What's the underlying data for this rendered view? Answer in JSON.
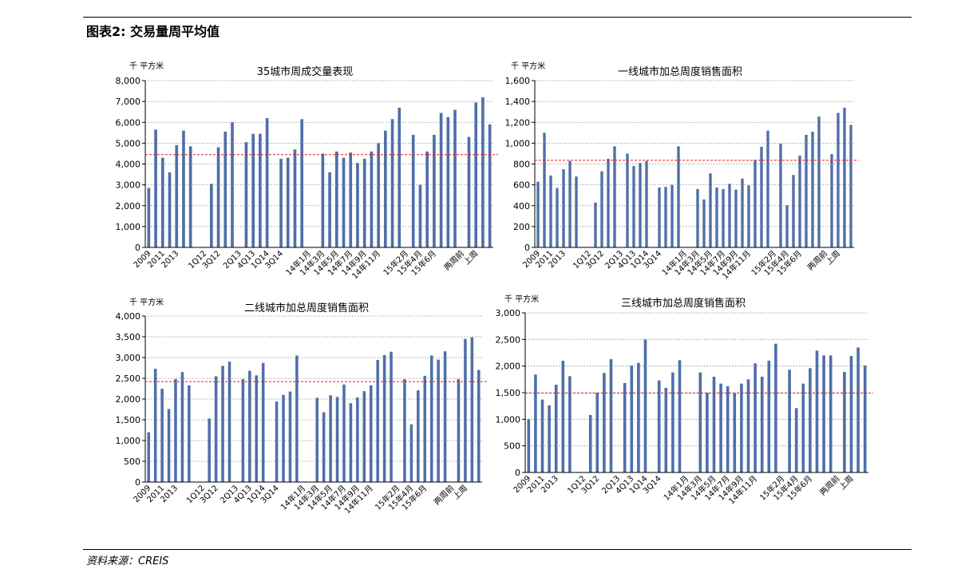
{
  "figure_title": "图表2: 交易量周平均值",
  "source": "资料来源：CREIS",
  "chart_data": [
    {
      "type": "bar",
      "title": "35城市周成交量表现",
      "unit": "千 平方米",
      "ylim": [
        0,
        8000
      ],
      "yticks": [
        "0",
        "1,000",
        "2,000",
        "3,000",
        "4,000",
        "5,000",
        "6,000",
        "7,000",
        "8,000"
      ],
      "bar_color": "#4F6FA8",
      "reference_line": {
        "value": 4450,
        "color": "#E02020",
        "style": "dashed"
      },
      "x_labels": [
        {
          "index": 0,
          "text": "2009"
        },
        {
          "index": 2,
          "text": "2011"
        },
        {
          "index": 4,
          "text": "2013"
        },
        {
          "index": 8,
          "text": "1Q12"
        },
        {
          "index": 10,
          "text": "3Q12"
        },
        {
          "index": 13,
          "text": "2Q13"
        },
        {
          "index": 15,
          "text": "4Q13"
        },
        {
          "index": 17,
          "text": "1Q14"
        },
        {
          "index": 19,
          "text": "3Q14"
        },
        {
          "index": 23,
          "text": "14年1月"
        },
        {
          "index": 25,
          "text": "14年3月"
        },
        {
          "index": 27,
          "text": "14年5月"
        },
        {
          "index": 29,
          "text": "14年7月"
        },
        {
          "index": 31,
          "text": "14年9月"
        },
        {
          "index": 33,
          "text": "14年11月"
        },
        {
          "index": 37,
          "text": "15年2月"
        },
        {
          "index": 39,
          "text": "15年4月"
        },
        {
          "index": 41,
          "text": "15年6月"
        },
        {
          "index": 45,
          "text": "两周前"
        },
        {
          "index": 47,
          "text": "上周"
        }
      ],
      "values": [
        2850,
        5650,
        4300,
        3600,
        4900,
        5600,
        4850,
        null,
        null,
        3050,
        4800,
        5550,
        6000,
        null,
        5050,
        5450,
        5450,
        6200,
        null,
        4250,
        4300,
        4700,
        6150,
        null,
        null,
        4500,
        3600,
        4600,
        4300,
        4550,
        4050,
        4250,
        4600,
        5000,
        5600,
        6150,
        6700,
        null,
        5400,
        3000,
        4600,
        5400,
        6450,
        6250,
        6600,
        null,
        5300,
        6950,
        7200,
        5900
      ]
    },
    {
      "type": "bar",
      "title": "一线城市加总周度销售面积",
      "unit": "千 平方米",
      "ylim": [
        0,
        1600
      ],
      "yticks": [
        "0",
        "200",
        "400",
        "600",
        "800",
        "1,000",
        "1,200",
        "1,400",
        "1,600"
      ],
      "bar_color": "#4F6FA8",
      "reference_line": {
        "value": 835,
        "color": "#E02020",
        "style": "dashed"
      },
      "x_labels": [
        {
          "index": 0,
          "text": "2009"
        },
        {
          "index": 2,
          "text": "2011"
        },
        {
          "index": 4,
          "text": "2013"
        },
        {
          "index": 8,
          "text": "1Q12"
        },
        {
          "index": 10,
          "text": "3Q12"
        },
        {
          "index": 13,
          "text": "2Q13"
        },
        {
          "index": 15,
          "text": "4Q13"
        },
        {
          "index": 17,
          "text": "1Q14"
        },
        {
          "index": 19,
          "text": "3Q14"
        },
        {
          "index": 23,
          "text": "14年1月"
        },
        {
          "index": 25,
          "text": "14年3月"
        },
        {
          "index": 27,
          "text": "14年5月"
        },
        {
          "index": 29,
          "text": "14年7月"
        },
        {
          "index": 31,
          "text": "14年9月"
        },
        {
          "index": 33,
          "text": "14年11月"
        },
        {
          "index": 37,
          "text": "15年2月"
        },
        {
          "index": 39,
          "text": "15年4月"
        },
        {
          "index": 41,
          "text": "15年6月"
        },
        {
          "index": 45,
          "text": "两周前"
        },
        {
          "index": 47,
          "text": "上周"
        }
      ],
      "values": [
        630,
        1100,
        690,
        570,
        750,
        830,
        680,
        null,
        null,
        430,
        730,
        850,
        970,
        null,
        900,
        780,
        810,
        830,
        null,
        575,
        580,
        600,
        970,
        null,
        null,
        560,
        460,
        710,
        575,
        560,
        610,
        555,
        660,
        595,
        840,
        965,
        1120,
        null,
        995,
        405,
        695,
        880,
        1080,
        1110,
        1255,
        null,
        895,
        1290,
        1340,
        1175
      ]
    },
    {
      "type": "bar",
      "title": "二线城市加总周度销售面积",
      "unit": "千 平方米",
      "ylim": [
        0,
        4000
      ],
      "yticks": [
        "0",
        "500",
        "1,000",
        "1,500",
        "2,000",
        "2,500",
        "3,000",
        "3,500",
        "4,000"
      ],
      "bar_color": "#4F6FA8",
      "reference_line": {
        "value": 2420,
        "color": "#E02020",
        "style": "dashed"
      },
      "x_labels": [
        {
          "index": 0,
          "text": "2009"
        },
        {
          "index": 2,
          "text": "2011"
        },
        {
          "index": 4,
          "text": "2013"
        },
        {
          "index": 8,
          "text": "1Q12"
        },
        {
          "index": 10,
          "text": "3Q12"
        },
        {
          "index": 13,
          "text": "2Q13"
        },
        {
          "index": 15,
          "text": "4Q13"
        },
        {
          "index": 17,
          "text": "1Q14"
        },
        {
          "index": 19,
          "text": "3Q14"
        },
        {
          "index": 23,
          "text": "14年1月"
        },
        {
          "index": 25,
          "text": "14年3月"
        },
        {
          "index": 27,
          "text": "14年5月"
        },
        {
          "index": 29,
          "text": "14年7月"
        },
        {
          "index": 31,
          "text": "14年9月"
        },
        {
          "index": 33,
          "text": "14年11月"
        },
        {
          "index": 37,
          "text": "15年2月"
        },
        {
          "index": 39,
          "text": "15年4月"
        },
        {
          "index": 41,
          "text": "15年6月"
        },
        {
          "index": 45,
          "text": "两周前"
        },
        {
          "index": 47,
          "text": "上周"
        }
      ],
      "values": [
        1200,
        2730,
        2250,
        1760,
        2480,
        2650,
        2330,
        null,
        null,
        1530,
        2550,
        2800,
        2900,
        null,
        2480,
        2680,
        2570,
        2870,
        null,
        1940,
        2100,
        2180,
        3050,
        null,
        null,
        2030,
        1680,
        2090,
        2050,
        2350,
        1900,
        2040,
        2190,
        2330,
        2940,
        3060,
        3140,
        null,
        2480,
        1390,
        2210,
        2560,
        3050,
        2950,
        3150,
        null,
        2480,
        3450,
        3490,
        2700
      ]
    },
    {
      "type": "bar",
      "title": "三线城市加总周度销售面积",
      "unit": "千 平方米",
      "ylim": [
        0,
        3000
      ],
      "yticks": [
        "0",
        "500",
        "1,000",
        "1,500",
        "2,000",
        "2,500",
        "3,000"
      ],
      "bar_color": "#4F6FA8",
      "reference_line": {
        "value": 1490,
        "color": "#E02020",
        "style": "dashed"
      },
      "x_labels": [
        {
          "index": 0,
          "text": "2009"
        },
        {
          "index": 2,
          "text": "2011"
        },
        {
          "index": 4,
          "text": "2013"
        },
        {
          "index": 8,
          "text": "1Q12"
        },
        {
          "index": 10,
          "text": "3Q12"
        },
        {
          "index": 13,
          "text": "2Q13"
        },
        {
          "index": 15,
          "text": "4Q13"
        },
        {
          "index": 17,
          "text": "1Q14"
        },
        {
          "index": 19,
          "text": "3Q14"
        },
        {
          "index": 23,
          "text": "14年1月"
        },
        {
          "index": 25,
          "text": "14年3月"
        },
        {
          "index": 27,
          "text": "14年5月"
        },
        {
          "index": 29,
          "text": "14年7月"
        },
        {
          "index": 31,
          "text": "14年9月"
        },
        {
          "index": 33,
          "text": "14年11月"
        },
        {
          "index": 37,
          "text": "15年2月"
        },
        {
          "index": 39,
          "text": "15年4月"
        },
        {
          "index": 41,
          "text": "15年6月"
        },
        {
          "index": 45,
          "text": "两周前"
        },
        {
          "index": 47,
          "text": "上周"
        }
      ],
      "values": [
        1000,
        1840,
        1370,
        1260,
        1650,
        2100,
        1810,
        null,
        null,
        1080,
        1500,
        1870,
        2130,
        null,
        1680,
        2010,
        2060,
        2500,
        null,
        1730,
        1590,
        1880,
        2110,
        null,
        null,
        1880,
        1500,
        1800,
        1670,
        1620,
        1490,
        1670,
        1750,
        2050,
        1800,
        2100,
        2420,
        null,
        1930,
        1210,
        1670,
        1960,
        2290,
        2200,
        2200,
        null,
        1890,
        2190,
        2350,
        2010
      ]
    }
  ]
}
